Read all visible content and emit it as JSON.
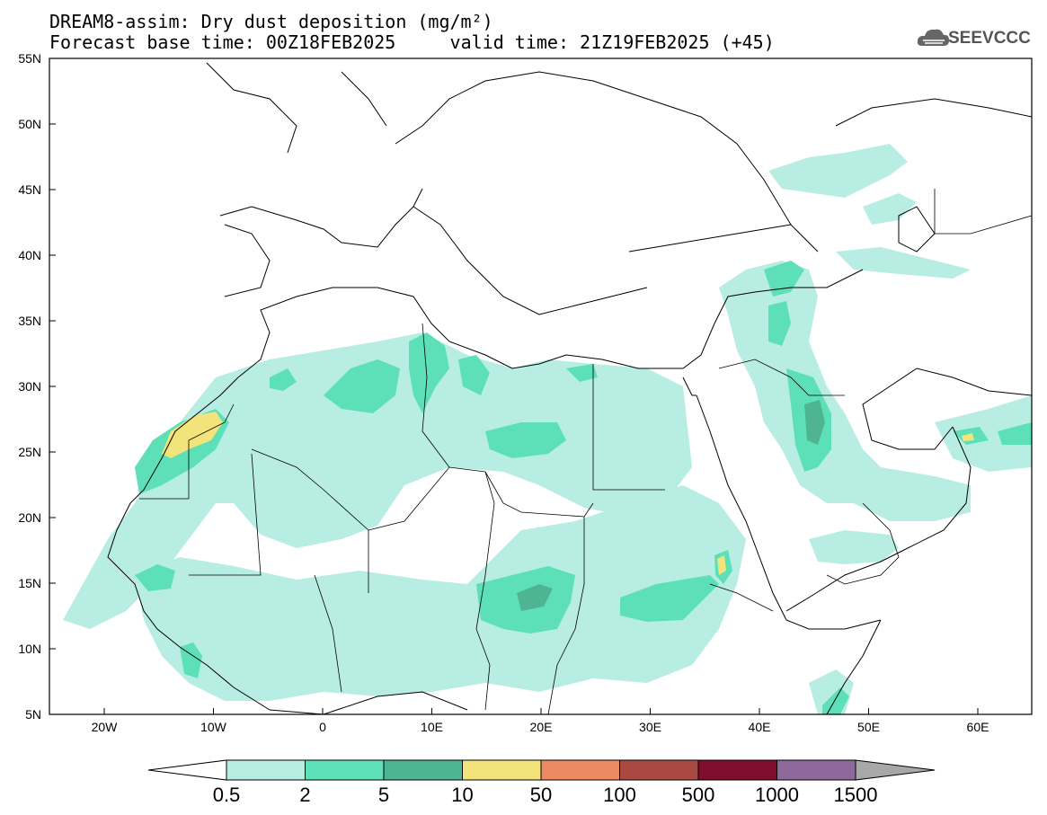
{
  "header": {
    "title": "DREAM8-assim: Dry dust deposition (mg/m²)",
    "base_label": "Forecast base time: 00Z18FEB2025",
    "valid_label": "valid time: 21Z19FEB2025 (+45)"
  },
  "logo": {
    "text": "SEEVCCC",
    "icon": "cloud-icon"
  },
  "map": {
    "lat_labels": [
      "55N",
      "50N",
      "45N",
      "40N",
      "35N",
      "30N",
      "25N",
      "20N",
      "15N",
      "10N",
      "5N"
    ],
    "lon_labels": [
      "20W",
      "10W",
      "0",
      "10E",
      "20E",
      "30E",
      "40E",
      "50E",
      "60E"
    ]
  },
  "colorbar": {
    "labels": [
      "0.5",
      "2",
      "5",
      "10",
      "50",
      "100",
      "500",
      "1000",
      "1500"
    ],
    "colors": [
      "#b8ede4",
      "#5de0b8",
      "#4fb491",
      "#f2e47a",
      "#eb8a63",
      "#a94a42",
      "#7d0f2d",
      "#8e699c",
      "#a8a8a8"
    ],
    "under_color": "#ffffff"
  }
}
